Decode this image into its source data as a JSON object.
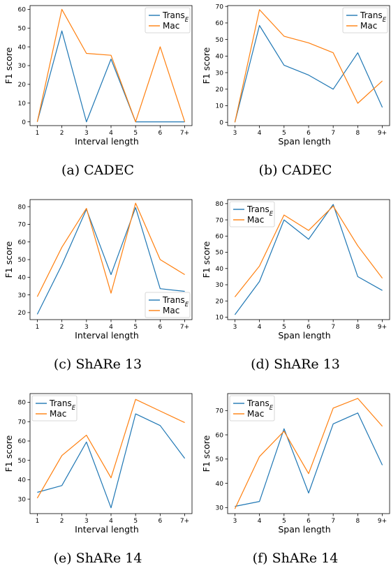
{
  "colors": {
    "trans": "#1f77b4",
    "mac": "#ff7f0e"
  },
  "chart_data": [
    {
      "type": "line",
      "caption": "(a)  CADEC",
      "xlabel": "Interval length",
      "ylabel": "F1 score",
      "categories": [
        "1",
        "2",
        "3",
        "4",
        "5",
        "6",
        "7+"
      ],
      "ylim": [
        -2,
        62
      ],
      "yticks": [
        0,
        10,
        20,
        30,
        40,
        50,
        60
      ],
      "legend": "top-right",
      "series": [
        {
          "name": "Trans",
          "name_sub": "E",
          "color": "#1f77b4",
          "values": [
            0,
            48.5,
            0,
            33.5,
            0,
            0,
            0
          ]
        },
        {
          "name": "Mac",
          "color": "#ff7f0e",
          "values": [
            0,
            60,
            36.5,
            35.5,
            0,
            40,
            0
          ]
        }
      ]
    },
    {
      "type": "line",
      "caption": "(b)  CADEC",
      "xlabel": "Span length",
      "ylabel": "F1 score",
      "categories": [
        "3",
        "4",
        "5",
        "6",
        "7",
        "8",
        "9+"
      ],
      "ylim": [
        -2,
        70.5
      ],
      "yticks": [
        0,
        10,
        20,
        30,
        40,
        50,
        60,
        70
      ],
      "legend": "top-right",
      "series": [
        {
          "name": "Trans",
          "name_sub": "E",
          "color": "#1f77b4",
          "values": [
            0,
            58.5,
            34.5,
            28.5,
            20,
            42,
            9
          ]
        },
        {
          "name": "Mac",
          "color": "#ff7f0e",
          "values": [
            0,
            68,
            52,
            48,
            42,
            11.5,
            25
          ]
        }
      ]
    },
    {
      "type": "line",
      "caption": "(c)  ShARe 13",
      "xlabel": "Interval length",
      "ylabel": "F1 score",
      "categories": [
        "1",
        "2",
        "3",
        "4",
        "5",
        "6",
        "7+"
      ],
      "ylim": [
        16,
        84
      ],
      "yticks": [
        20,
        30,
        40,
        50,
        60,
        70,
        80
      ],
      "legend": "bottom-right",
      "series": [
        {
          "name": "Trans",
          "name_sub": "E",
          "color": "#1f77b4",
          "values": [
            19,
            47,
            78.5,
            41.5,
            79.5,
            33.5,
            32
          ]
        },
        {
          "name": "Mac",
          "color": "#ff7f0e",
          "values": [
            29,
            57,
            79,
            31,
            82,
            50,
            41.5
          ]
        }
      ]
    },
    {
      "type": "line",
      "caption": "(d)  ShARe 13",
      "xlabel": "Span length",
      "ylabel": "F1 score",
      "categories": [
        "3",
        "4",
        "5",
        "6",
        "7",
        "8",
        "9+"
      ],
      "ylim": [
        8.5,
        82.5
      ],
      "yticks": [
        10,
        20,
        30,
        40,
        50,
        60,
        70,
        80
      ],
      "legend": "top-left",
      "series": [
        {
          "name": "Trans",
          "name_sub": "E",
          "color": "#1f77b4",
          "values": [
            11.5,
            32,
            70,
            58,
            79.5,
            35,
            26.5
          ]
        },
        {
          "name": "Mac",
          "color": "#ff7f0e",
          "values": [
            22.5,
            41.5,
            73,
            63.5,
            78.5,
            54,
            34
          ]
        }
      ]
    },
    {
      "type": "line",
      "caption": "(e)  ShARe 14",
      "xlabel": "Interval length",
      "ylabel": "F1 score",
      "categories": [
        "1",
        "2",
        "3",
        "4",
        "5",
        "6",
        "7+"
      ],
      "ylim": [
        22.5,
        84.5
      ],
      "yticks": [
        30,
        40,
        50,
        60,
        70,
        80
      ],
      "legend": "top-left",
      "series": [
        {
          "name": "Trans",
          "name_sub": "E",
          "color": "#1f77b4",
          "values": [
            33.5,
            37,
            59.5,
            25.5,
            74,
            68,
            51
          ]
        },
        {
          "name": "Mac",
          "color": "#ff7f0e",
          "values": [
            30.5,
            52.5,
            63,
            41,
            81.5,
            75.5,
            69.5
          ]
        }
      ]
    },
    {
      "type": "line",
      "caption": "(f)  ShARe 14",
      "xlabel": "Span length",
      "ylabel": "F1 score",
      "categories": [
        "3",
        "4",
        "5",
        "6",
        "7",
        "8",
        "9+"
      ],
      "ylim": [
        27.5,
        77
      ],
      "yticks": [
        30,
        40,
        50,
        60,
        70
      ],
      "legend": "top-left",
      "series": [
        {
          "name": "Trans",
          "name_sub": "E",
          "color": "#1f77b4",
          "values": [
            30.5,
            32.5,
            62.5,
            36,
            64.5,
            69,
            47.5
          ]
        },
        {
          "name": "Mac",
          "color": "#ff7f0e",
          "values": [
            29.5,
            51,
            61.5,
            44,
            71,
            75,
            63.5
          ]
        }
      ]
    }
  ]
}
